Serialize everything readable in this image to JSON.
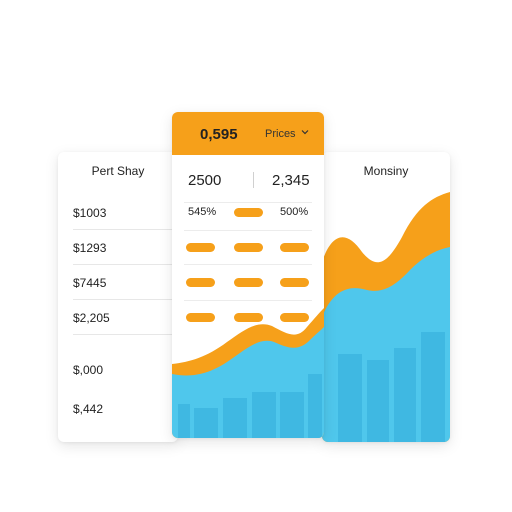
{
  "left_panel": {
    "title": "Pert Shay",
    "rows": [
      "$1003",
      "$1293",
      "$7445",
      "$2,205"
    ],
    "extra": [
      "$,000",
      "$,442"
    ]
  },
  "center_panel": {
    "header_value": "0,595",
    "header_dropdown": "Prices",
    "col1_value": "2500",
    "col2_value": "2,345",
    "pct1": "545%",
    "pct2": "500%"
  },
  "right_panel": {
    "title": "Monsiny"
  },
  "colors": {
    "accent_orange": "#f6a01a",
    "chart_blue": "#4fc7ec",
    "chart_blue_dark": "#3fb8e2"
  }
}
